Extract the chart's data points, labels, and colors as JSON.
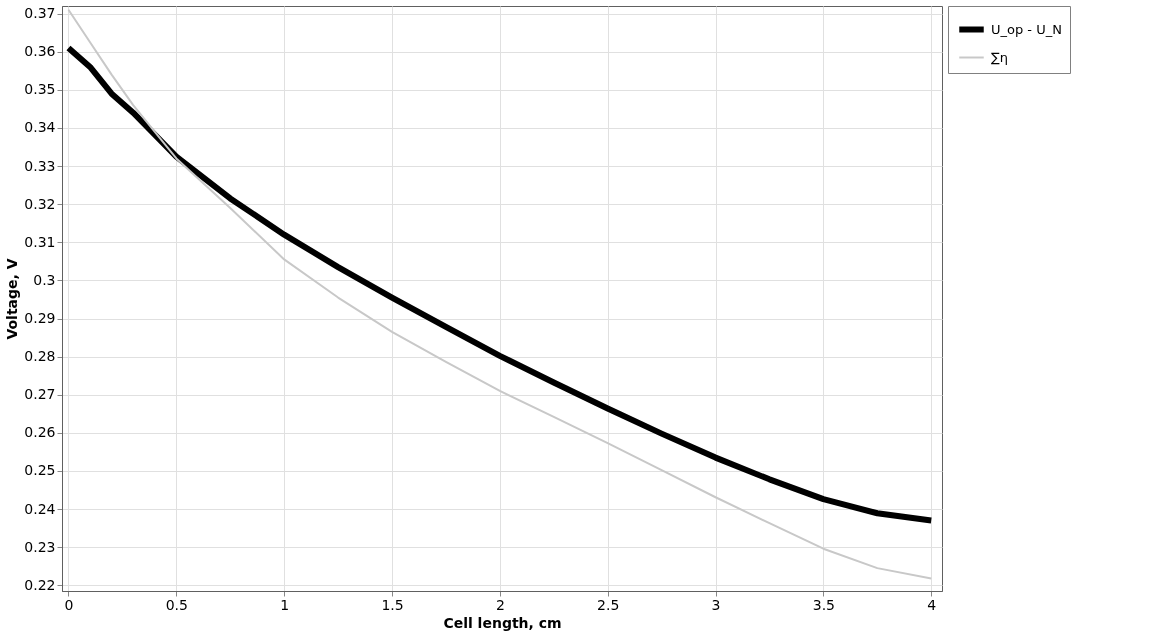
{
  "chart_data": {
    "type": "line",
    "xlabel": "Cell length, cm",
    "ylabel": "Voltage, V",
    "xlim": [
      -0.03,
      4.05
    ],
    "ylim": [
      0.2185,
      0.372
    ],
    "xticks": [
      0,
      0.5,
      1,
      1.5,
      2,
      2.5,
      3,
      3.5,
      4
    ],
    "yticks": [
      0.22,
      0.23,
      0.24,
      0.25,
      0.26,
      0.27,
      0.28,
      0.29,
      0.3,
      0.31,
      0.32,
      0.33,
      0.34,
      0.35,
      0.36,
      0.37
    ],
    "grid": true,
    "legend": "top right",
    "marker": "none",
    "line_style": "solid",
    "x": [
      0,
      0.1,
      0.2,
      0.3,
      0.5,
      0.75,
      1,
      1.25,
      1.5,
      1.75,
      2,
      2.25,
      2.5,
      2.75,
      3,
      3.25,
      3.5,
      3.75,
      4
    ],
    "series": [
      {
        "name": "U_op - U_N",
        "color": "#000000",
        "values": [
          0.361,
          0.356,
          0.349,
          0.344,
          0.3325,
          0.3215,
          0.312,
          0.3035,
          0.2955,
          0.2878,
          0.2802,
          0.2732,
          0.2664,
          0.2598,
          0.2535,
          0.2478,
          0.2426,
          0.2389,
          0.237
        ]
      },
      {
        "name": "∑η",
        "color": "#c8c8c8",
        "values": [
          0.371,
          0.3625,
          0.354,
          0.346,
          0.332,
          0.319,
          0.3055,
          0.2955,
          0.2865,
          0.2786,
          0.271,
          0.2642,
          0.2573,
          0.2502,
          0.2431,
          0.2363,
          0.2296,
          0.2245,
          0.2218
        ]
      }
    ]
  }
}
